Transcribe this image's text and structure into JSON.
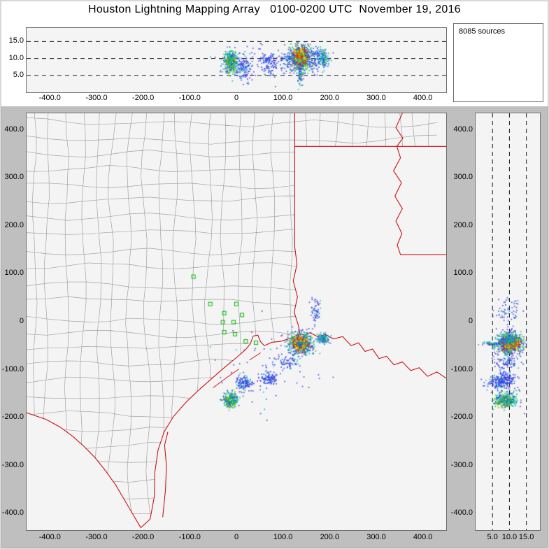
{
  "title": "Houston Lightning Mapping Array   0100-0200 UTC  November 19, 2016",
  "sources_label": "8085 sources",
  "colors": {
    "background": "#bfbfbf",
    "header": "#ffffff",
    "panel_bg": "#f4f4f4",
    "panel_border": "#6f6f6f",
    "county": "#a3a3a3",
    "state_border": "#cc1111",
    "station": "#00bb00",
    "dashed_line": "#1a1a1a",
    "text": "#000000"
  },
  "axes": {
    "ew_range": [
      -450,
      450
    ],
    "ns_range": [
      -435,
      435
    ],
    "alt_range": [
      0,
      19
    ],
    "ew_tick_values": [
      -400,
      -300,
      -200,
      -100,
      0,
      100,
      200,
      300,
      400
    ],
    "ew_tick_labels": [
      "-400.0",
      "-300.0",
      "-200.0",
      "-100.0",
      "0",
      "100.0",
      "200.0",
      "300.0",
      "400.0"
    ],
    "ns_tick_values": [
      400,
      300,
      200,
      100,
      0,
      -100,
      -200,
      -300,
      -400
    ],
    "ns_tick_labels": [
      "400.0",
      "300.0",
      "200.0",
      "100.0",
      "0",
      "-100.0",
      "-200.0",
      "-300.0",
      "-400.0"
    ],
    "alt_tick_values": [
      5,
      10,
      15
    ],
    "alt_tick_labels": [
      "5.0",
      "10.0",
      "15.0"
    ]
  },
  "chart_data": {
    "type": "scatter",
    "title": "Houston Lightning Mapping Array   0100-0200 UTC  November 19, 2016",
    "total_sources": 8085,
    "panels": [
      {
        "id": "altitude-vs-eastwest",
        "xlim": [
          -450,
          450
        ],
        "ylim": [
          0,
          19
        ],
        "gridlines_alt_km": [
          5,
          10,
          15
        ]
      },
      {
        "id": "plan-view",
        "xlim": [
          -450,
          450
        ],
        "ylim": [
          -435,
          435
        ]
      },
      {
        "id": "altitude-vs-northsouth",
        "xlim": [
          0,
          19
        ],
        "ylim": [
          -435,
          435
        ],
        "gridlines_alt_km": [
          5,
          10,
          15
        ]
      }
    ],
    "clusters": [
      {
        "name": "storm-a-halo",
        "east": 137,
        "north": -45,
        "alt_km": 10.0,
        "sigma_east": 13,
        "sigma_north": 11,
        "sigma_alt": 2.0,
        "count": 650,
        "palette": [
          [
            "#33bb33",
            0.3
          ],
          [
            "#00bbbb",
            0.28
          ],
          [
            "#3344ee",
            0.3
          ],
          [
            "#7733cc",
            0.12
          ]
        ]
      },
      {
        "name": "storm-a-core",
        "east": 137,
        "north": -45,
        "alt_km": 10.3,
        "sigma_east": 6,
        "sigma_north": 5.5,
        "sigma_alt": 1.1,
        "count": 900,
        "palette": [
          [
            "#dd1100",
            0.28
          ],
          [
            "#ff7700",
            0.22
          ],
          [
            "#ffee00",
            0.18
          ],
          [
            "#33bb33",
            0.16
          ],
          [
            "#00bbbb",
            0.1
          ],
          [
            "#3344ee",
            0.06
          ]
        ]
      },
      {
        "name": "storm-a-low-streak",
        "east": 137,
        "north": -46,
        "alt_km": 5.5,
        "sigma_east": 2.5,
        "sigma_north": 2.5,
        "sigma_alt": 2.3,
        "count": 70,
        "palette": [
          [
            "#3344ee",
            0.5
          ],
          [
            "#00bbbb",
            0.3
          ],
          [
            "#33bb33",
            0.2
          ]
        ]
      },
      {
        "name": "storm-a-east-cell",
        "east": 186,
        "north": -36,
        "alt_km": 10.0,
        "sigma_east": 6,
        "sigma_north": 5,
        "sigma_alt": 1.3,
        "count": 140,
        "palette": [
          [
            "#00bbbb",
            0.4
          ],
          [
            "#3344ee",
            0.35
          ],
          [
            "#33bb33",
            0.25
          ]
        ]
      },
      {
        "name": "storm-b",
        "east": -13,
        "north": -163,
        "alt_km": 8.8,
        "sigma_east": 7,
        "sigma_north": 7,
        "sigma_alt": 1.5,
        "count": 430,
        "palette": [
          [
            "#00bbbb",
            0.34
          ],
          [
            "#33bb33",
            0.3
          ],
          [
            "#3344ee",
            0.22
          ],
          [
            "#ffee00",
            0.1
          ],
          [
            "#ff7700",
            0.04
          ]
        ]
      },
      {
        "name": "coastal-blue-1",
        "east": 15,
        "north": -128,
        "alt_km": 7.0,
        "sigma_east": 9,
        "sigma_north": 7,
        "sigma_alt": 1.8,
        "count": 130,
        "palette": [
          [
            "#3344ee",
            0.62
          ],
          [
            "#5522cc",
            0.18
          ],
          [
            "#00bbbb",
            0.2
          ]
        ]
      },
      {
        "name": "coastal-blue-2",
        "east": 68,
        "north": -118,
        "alt_km": 8.5,
        "sigma_east": 8,
        "sigma_north": 6,
        "sigma_alt": 1.8,
        "count": 100,
        "palette": [
          [
            "#3344ee",
            0.62
          ],
          [
            "#5522cc",
            0.18
          ],
          [
            "#00bbbb",
            0.2
          ]
        ]
      },
      {
        "name": "coastal-blue-3",
        "east": 108,
        "north": -85,
        "alt_km": 9.0,
        "sigma_east": 11,
        "sigma_north": 9,
        "sigma_alt": 2.0,
        "count": 70,
        "palette": [
          [
            "#3344ee",
            0.62
          ],
          [
            "#5522cc",
            0.18
          ],
          [
            "#00bbbb",
            0.2
          ]
        ]
      },
      {
        "name": "north-streak",
        "east": 170,
        "north": 20,
        "alt_km": 9.0,
        "sigma_east": 6,
        "sigma_north": 16,
        "sigma_alt": 1.8,
        "count": 60,
        "palette": [
          [
            "#3344ee",
            0.62
          ],
          [
            "#5522cc",
            0.18
          ],
          [
            "#00bbbb",
            0.2
          ]
        ]
      },
      {
        "name": "scattered-noise",
        "east": 60,
        "north": -110,
        "alt_km": 9.0,
        "sigma_east": 60,
        "sigma_north": 45,
        "sigma_alt": 2.5,
        "count": 80,
        "palette": [
          [
            "#3344ee",
            0.62
          ],
          [
            "#5522cc",
            0.18
          ],
          [
            "#00bbbb",
            0.2
          ]
        ]
      }
    ],
    "stations": [
      [
        -92,
        94
      ],
      [
        -56,
        37
      ],
      [
        -26,
        18
      ],
      [
        0,
        37
      ],
      [
        -29,
        -1
      ],
      [
        -6,
        -1
      ],
      [
        12,
        14
      ],
      [
        -26,
        -22
      ],
      [
        -3,
        -26
      ],
      [
        20,
        -41
      ],
      [
        42,
        -44
      ]
    ]
  },
  "map": {
    "arkansas_rect": [
      125,
      366,
      450,
      435
    ],
    "texas_clip": [
      [
        -450,
        435
      ],
      [
        125,
        435
      ],
      [
        125,
        157
      ],
      [
        130,
        120
      ],
      [
        122,
        85
      ],
      [
        131,
        52
      ],
      [
        124,
        20
      ],
      [
        133,
        -8
      ],
      [
        136,
        -25
      ],
      [
        118,
        -34
      ],
      [
        95,
        -41
      ],
      [
        76,
        -43
      ],
      [
        60,
        -50
      ],
      [
        52,
        -42
      ],
      [
        46,
        -28
      ],
      [
        36,
        -30
      ],
      [
        30,
        -46
      ],
      [
        20,
        -58
      ],
      [
        0,
        -75
      ],
      [
        -25,
        -95
      ],
      [
        -52,
        -118
      ],
      [
        -80,
        -142
      ],
      [
        -108,
        -168
      ],
      [
        -135,
        -198
      ],
      [
        -155,
        -230
      ],
      [
        -168,
        -268
      ],
      [
        -175,
        -315
      ],
      [
        -176,
        -365
      ],
      [
        -185,
        -412
      ],
      [
        -205,
        -430
      ],
      [
        -222,
        -402
      ],
      [
        -240,
        -372
      ],
      [
        -258,
        -342
      ],
      [
        -280,
        -312
      ],
      [
        -302,
        -285
      ],
      [
        -325,
        -262
      ],
      [
        -350,
        -240
      ],
      [
        -378,
        -220
      ],
      [
        -408,
        -204
      ],
      [
        -450,
        -190
      ]
    ],
    "borders": {
      "tx_ar_sabine": [
        [
          125,
          435
        ],
        [
          125,
          157
        ],
        [
          130,
          120
        ],
        [
          122,
          85
        ],
        [
          131,
          52
        ],
        [
          124,
          20
        ],
        [
          133,
          -8
        ],
        [
          136,
          -25
        ]
      ],
      "ar_la": [
        [
          125,
          366
        ],
        [
          450,
          366
        ]
      ],
      "mississippi_river": [
        [
          356,
          435
        ],
        [
          342,
          405
        ],
        [
          357,
          383
        ],
        [
          344,
          366
        ],
        [
          352,
          342
        ],
        [
          337,
          315
        ],
        [
          354,
          290
        ],
        [
          340,
          262
        ],
        [
          356,
          236
        ],
        [
          342,
          210
        ],
        [
          355,
          184
        ],
        [
          345,
          160
        ],
        [
          352,
          140
        ],
        [
          450,
          140
        ]
      ],
      "coastline": [
        [
          450,
          -118
        ],
        [
          430,
          -105
        ],
        [
          410,
          -114
        ],
        [
          392,
          -96
        ],
        [
          374,
          -102
        ],
        [
          356,
          -84
        ],
        [
          338,
          -90
        ],
        [
          322,
          -72
        ],
        [
          306,
          -77
        ],
        [
          292,
          -57
        ],
        [
          276,
          -62
        ],
        [
          262,
          -44
        ],
        [
          246,
          -50
        ],
        [
          228,
          -31
        ],
        [
          208,
          -36
        ],
        [
          192,
          -27
        ],
        [
          174,
          -31
        ],
        [
          158,
          -23
        ],
        [
          146,
          -28
        ],
        [
          136,
          -25
        ],
        [
          118,
          -34
        ],
        [
          95,
          -41
        ],
        [
          76,
          -43
        ],
        [
          60,
          -50
        ],
        [
          52,
          -42
        ],
        [
          46,
          -28
        ],
        [
          36,
          -30
        ],
        [
          30,
          -46
        ],
        [
          20,
          -58
        ],
        [
          0,
          -75
        ],
        [
          -25,
          -95
        ],
        [
          -52,
          -118
        ],
        [
          -80,
          -142
        ],
        [
          -108,
          -168
        ],
        [
          -135,
          -198
        ],
        [
          -155,
          -230
        ],
        [
          -168,
          -268
        ],
        [
          -175,
          -315
        ],
        [
          -176,
          -365
        ],
        [
          -185,
          -412
        ],
        [
          -205,
          -430
        ]
      ],
      "rio_grande": [
        [
          -205,
          -430
        ],
        [
          -222,
          -402
        ],
        [
          -240,
          -372
        ],
        [
          -258,
          -342
        ],
        [
          -280,
          -312
        ],
        [
          -302,
          -285
        ],
        [
          -325,
          -262
        ],
        [
          -350,
          -240
        ],
        [
          -378,
          -220
        ],
        [
          -408,
          -204
        ],
        [
          -450,
          -190
        ]
      ],
      "padre_island": [
        [
          -158,
          -408
        ],
        [
          -152,
          -350
        ],
        [
          -150,
          -300
        ],
        [
          -154,
          -258
        ],
        [
          -147,
          -230
        ]
      ],
      "islands": [
        [
          [
            -50,
            -138
          ],
          [
            -20,
            -116
          ],
          [
            5,
            -99
          ]
        ],
        [
          [
            28,
            -80
          ],
          [
            52,
            -65
          ]
        ]
      ]
    }
  }
}
